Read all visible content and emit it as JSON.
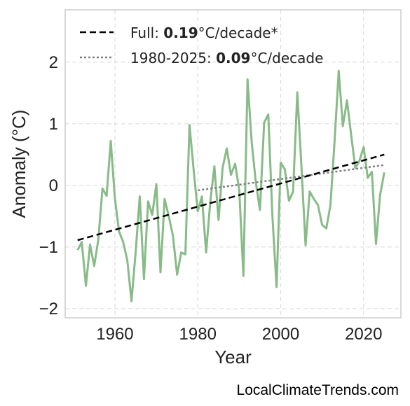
{
  "chart_data": {
    "type": "line",
    "title": "",
    "xlabel": "Year",
    "ylabel": "Anomaly (°C)",
    "xlim": [
      1948,
      2029
    ],
    "ylim": [
      -2.15,
      2.85
    ],
    "xticks": [
      1960,
      1980,
      2000,
      2020
    ],
    "xtick_labels": [
      "1960",
      "1980",
      "2000",
      "2020"
    ],
    "yticks": [
      -2,
      -1,
      0,
      1,
      2
    ],
    "ytick_labels": [
      "−2",
      "−1",
      "0",
      "1",
      "2"
    ],
    "grid": true,
    "legend_position": "top-left",
    "colors": {
      "anomaly": "#88bb88",
      "trend_full": "#000000",
      "trend_recent": "#808080",
      "grid": "#dddddd",
      "frame": "#cccccc"
    },
    "series": [
      {
        "x": [
          1951,
          1952,
          1953,
          1954,
          1955,
          1956,
          1957,
          1958,
          1959,
          1960,
          1961,
          1962,
          1963,
          1964,
          1965,
          1966,
          1967,
          1968,
          1969,
          1970,
          1971,
          1972,
          1973,
          1974,
          1975,
          1976,
          1977,
          1978,
          1979,
          1980,
          1981,
          1982,
          1983,
          1984,
          1985,
          1986,
          1987,
          1988,
          1989,
          1990,
          1991,
          1992,
          1993,
          1994,
          1995,
          1996,
          1997,
          1998,
          1999,
          2000,
          2001,
          2002,
          2003,
          2004,
          2005,
          2006,
          2007,
          2008,
          2009,
          2010,
          2011,
          2012,
          2013,
          2014,
          2015,
          2016,
          2017,
          2018,
          2019,
          2020,
          2021,
          2022,
          2023,
          2024,
          2025
        ],
        "values": [
          -1.05,
          -0.92,
          -1.63,
          -0.96,
          -1.31,
          -0.88,
          -0.05,
          -0.17,
          0.72,
          -0.22,
          -0.75,
          -0.92,
          -1.22,
          -1.88,
          -1.09,
          -0.18,
          -1.52,
          -0.26,
          -0.48,
          0.02,
          -1.41,
          -0.22,
          -0.5,
          -0.82,
          -1.45,
          -1.09,
          -1.12,
          0.98,
          0.25,
          -0.42,
          -0.18,
          -1.09,
          -0.27,
          0.31,
          -0.56,
          0.29,
          0.6,
          0.17,
          0.35,
          -0.08,
          -1.47,
          1.72,
          0.7,
          0.05,
          -0.4,
          1.02,
          1.15,
          -0.5,
          -1.65,
          0.37,
          0.26,
          -0.25,
          -0.1,
          1.51,
          0.3,
          -0.97,
          -0.1,
          -0.22,
          -0.32,
          -0.64,
          -0.7,
          -0.32,
          0.72,
          1.86,
          0.96,
          1.38,
          0.82,
          0.28,
          0.4,
          0.62,
          0.12,
          0.22,
          -0.95,
          -0.15,
          0.21
        ]
      },
      {
        "name": "Full: 0.19°C/decade*",
        "x": [
          1951,
          2025
        ],
        "values": [
          -0.89,
          0.5
        ]
      },
      {
        "name": "1980-2025: 0.09°C/decade",
        "x": [
          1980,
          2025
        ],
        "values": [
          -0.08,
          0.33
        ]
      }
    ]
  },
  "legend": {
    "full": {
      "prefix": "Full: ",
      "value": "0.19",
      "suffix": "°C/decade*"
    },
    "recent": {
      "prefix": "1980-2025: ",
      "value": "0.09",
      "suffix": "°C/decade"
    }
  },
  "watermark": "LocalClimateTrends.com"
}
